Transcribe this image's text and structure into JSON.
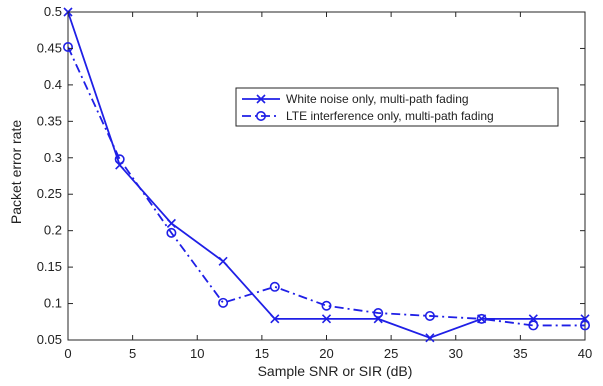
{
  "chart_data": {
    "type": "line",
    "title": "",
    "xlabel": "Sample SNR or SIR (dB)",
    "ylabel": "Packet error rate",
    "xlim": [
      0,
      40
    ],
    "ylim": [
      0.05,
      0.5
    ],
    "xticks": [
      0,
      5,
      10,
      15,
      20,
      25,
      30,
      35,
      40
    ],
    "yticks": [
      0.05,
      0.1,
      0.15,
      0.2,
      0.25,
      0.3,
      0.35,
      0.4,
      0.45,
      0.5
    ],
    "grid": false,
    "legend_position": "top-right",
    "series": [
      {
        "name": "White noise only, multi-path fading",
        "marker": "x",
        "line_style": "solid",
        "color": "#1f1fe6",
        "x": [
          0,
          4,
          8,
          12,
          16,
          20,
          24,
          28,
          32,
          36,
          40
        ],
        "y": [
          0.5,
          0.29,
          0.21,
          0.158,
          0.079,
          0.079,
          0.079,
          0.053,
          0.079,
          0.079,
          0.079
        ]
      },
      {
        "name": "LTE interference only, multi-path fading",
        "marker": "o",
        "line_style": "dash-dot",
        "color": "#1f1fe6",
        "x": [
          0,
          4,
          8,
          12,
          16,
          20,
          24,
          28,
          32,
          36,
          40
        ],
        "y": [
          0.452,
          0.298,
          0.197,
          0.101,
          0.123,
          0.097,
          0.087,
          0.083,
          0.079,
          0.07,
          0.07
        ]
      }
    ]
  }
}
